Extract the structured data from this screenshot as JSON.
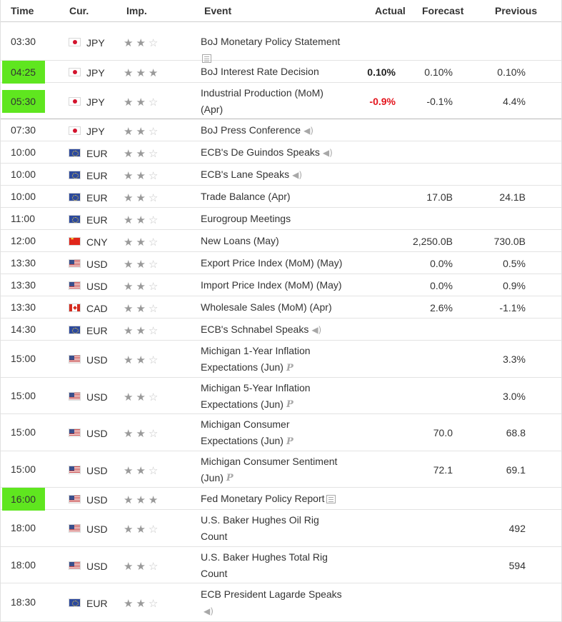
{
  "header": {
    "time": "Time",
    "currency": "Cur.",
    "importance": "Imp.",
    "event": "Event",
    "actual": "Actual",
    "forecast": "Forecast",
    "previous": "Previous"
  },
  "rows": [
    {
      "time": "03:30",
      "highlight": false,
      "currency": "JPY",
      "flag": "jp-flag-icon",
      "importance": 2,
      "event_lines": [
        "BoJ Monetary Policy Statement"
      ],
      "icon": "document-icon",
      "actual": "",
      "actual_style": "",
      "forecast": "",
      "previous": ""
    },
    {
      "time": "04:25",
      "highlight": true,
      "currency": "JPY",
      "flag": "jp-flag-icon",
      "importance": 3,
      "event_lines": [
        "BoJ Interest Rate Decision"
      ],
      "icon": "",
      "actual": "0.10%",
      "actual_style": "bold",
      "forecast": "0.10%",
      "previous": "0.10%"
    },
    {
      "time": "05:30",
      "highlight": true,
      "currency": "JPY",
      "flag": "jp-flag-icon",
      "importance": 2,
      "event_lines": [
        "Industrial Production (MoM)",
        "(Apr)"
      ],
      "icon": "",
      "actual": "-0.9%",
      "actual_style": "neg",
      "forecast": "-0.1%",
      "previous": "4.4%"
    },
    {
      "time": "07:30",
      "highlight": false,
      "currency": "JPY",
      "flag": "jp-flag-icon",
      "importance": 2,
      "event_lines": [
        "BoJ Press Conference"
      ],
      "icon": "speaker-icon",
      "actual": "",
      "actual_style": "",
      "forecast": "",
      "previous": ""
    },
    {
      "time": "10:00",
      "highlight": false,
      "currency": "EUR",
      "flag": "eu-flag-icon",
      "importance": 2,
      "event_lines": [
        "ECB's De Guindos Speaks"
      ],
      "icon": "speaker-icon",
      "actual": "",
      "actual_style": "",
      "forecast": "",
      "previous": ""
    },
    {
      "time": "10:00",
      "highlight": false,
      "currency": "EUR",
      "flag": "eu-flag-icon",
      "importance": 2,
      "event_lines": [
        "ECB's Lane Speaks"
      ],
      "icon": "speaker-icon",
      "actual": "",
      "actual_style": "",
      "forecast": "",
      "previous": ""
    },
    {
      "time": "10:00",
      "highlight": false,
      "currency": "EUR",
      "flag": "eu-flag-icon",
      "importance": 2,
      "event_lines": [
        "Trade Balance (Apr)"
      ],
      "icon": "",
      "actual": "",
      "actual_style": "",
      "forecast": "17.0B",
      "previous": "24.1B"
    },
    {
      "time": "11:00",
      "highlight": false,
      "currency": "EUR",
      "flag": "eu-flag-icon",
      "importance": 2,
      "event_lines": [
        "Eurogroup Meetings"
      ],
      "icon": "",
      "actual": "",
      "actual_style": "",
      "forecast": "",
      "previous": ""
    },
    {
      "time": "12:00",
      "highlight": false,
      "currency": "CNY",
      "flag": "cn-flag-icon",
      "importance": 2,
      "event_lines": [
        "New Loans (May)"
      ],
      "icon": "",
      "actual": "",
      "actual_style": "",
      "forecast": "2,250.0B",
      "previous": "730.0B"
    },
    {
      "time": "13:30",
      "highlight": false,
      "currency": "USD",
      "flag": "us-flag-icon",
      "importance": 2,
      "event_lines": [
        "Export Price Index (MoM) (May)"
      ],
      "icon": "",
      "actual": "",
      "actual_style": "",
      "forecast": "0.0%",
      "previous": "0.5%"
    },
    {
      "time": "13:30",
      "highlight": false,
      "currency": "USD",
      "flag": "us-flag-icon",
      "importance": 2,
      "event_lines": [
        "Import Price Index (MoM) (May)"
      ],
      "icon": "",
      "actual": "",
      "actual_style": "",
      "forecast": "0.0%",
      "previous": "0.9%"
    },
    {
      "time": "13:30",
      "highlight": false,
      "currency": "CAD",
      "flag": "ca-flag-icon",
      "importance": 2,
      "event_lines": [
        "Wholesale Sales (MoM) (Apr)"
      ],
      "icon": "",
      "actual": "",
      "actual_style": "",
      "forecast": "2.6%",
      "previous": "-1.1%"
    },
    {
      "time": "14:30",
      "highlight": false,
      "currency": "EUR",
      "flag": "eu-flag-icon",
      "importance": 2,
      "event_lines": [
        "ECB's Schnabel Speaks"
      ],
      "icon": "speaker-icon",
      "actual": "",
      "actual_style": "",
      "forecast": "",
      "previous": ""
    },
    {
      "time": "15:00",
      "highlight": false,
      "currency": "USD",
      "flag": "us-flag-icon",
      "importance": 2,
      "event_lines": [
        "Michigan 1-Year Inflation",
        "Expectations (Jun)"
      ],
      "icon": "preliminary-icon",
      "actual": "",
      "actual_style": "",
      "forecast": "",
      "previous": "3.3%"
    },
    {
      "time": "15:00",
      "highlight": false,
      "currency": "USD",
      "flag": "us-flag-icon",
      "importance": 2,
      "event_lines": [
        "Michigan 5-Year Inflation",
        "Expectations (Jun)"
      ],
      "icon": "preliminary-icon",
      "actual": "",
      "actual_style": "",
      "forecast": "",
      "previous": "3.0%"
    },
    {
      "time": "15:00",
      "highlight": false,
      "currency": "USD",
      "flag": "us-flag-icon",
      "importance": 2,
      "event_lines": [
        "Michigan Consumer",
        "Expectations (Jun)"
      ],
      "icon": "preliminary-icon",
      "actual": "",
      "actual_style": "",
      "forecast": "70.0",
      "previous": "68.8"
    },
    {
      "time": "15:00",
      "highlight": false,
      "currency": "USD",
      "flag": "us-flag-icon",
      "importance": 2,
      "event_lines": [
        "Michigan Consumer Sentiment",
        "(Jun)"
      ],
      "icon": "preliminary-icon",
      "actual": "",
      "actual_style": "",
      "forecast": "72.1",
      "previous": "69.1"
    },
    {
      "time": "16:00",
      "highlight": true,
      "currency": "USD",
      "flag": "us-flag-icon",
      "importance": 3,
      "event_lines": [
        "Fed Monetary Policy Report"
      ],
      "icon": "document-icon",
      "actual": "",
      "actual_style": "",
      "forecast": "",
      "previous": ""
    },
    {
      "time": "18:00",
      "highlight": false,
      "currency": "USD",
      "flag": "us-flag-icon",
      "importance": 2,
      "event_lines": [
        "U.S. Baker Hughes Oil Rig",
        "Count"
      ],
      "icon": "",
      "actual": "",
      "actual_style": "",
      "forecast": "",
      "previous": "492"
    },
    {
      "time": "18:00",
      "highlight": false,
      "currency": "USD",
      "flag": "us-flag-icon",
      "importance": 2,
      "event_lines": [
        "U.S. Baker Hughes Total Rig",
        "Count"
      ],
      "icon": "",
      "actual": "",
      "actual_style": "",
      "forecast": "",
      "previous": "594"
    },
    {
      "time": "18:30",
      "highlight": false,
      "currency": "EUR",
      "flag": "eu-flag-icon",
      "importance": 2,
      "event_lines": [
        "ECB President Lagarde Speaks"
      ],
      "icon": "speaker-icon",
      "icon_newline": true,
      "actual": "",
      "actual_style": "",
      "forecast": "",
      "previous": ""
    }
  ]
}
